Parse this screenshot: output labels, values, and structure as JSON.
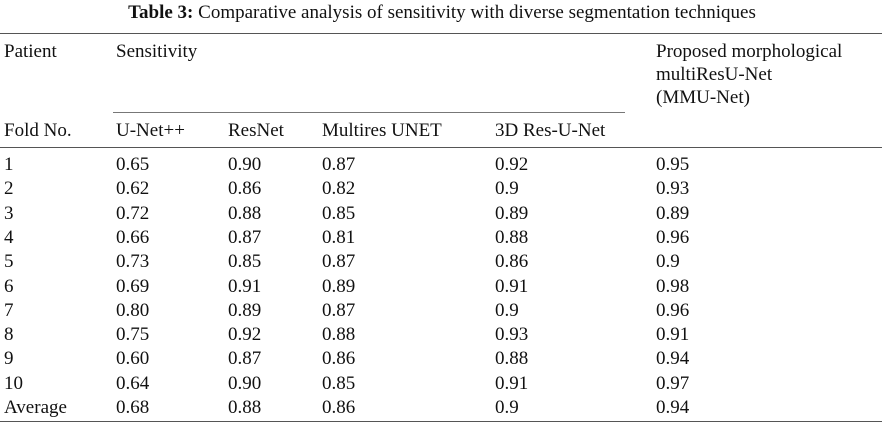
{
  "caption": {
    "label": "Table 3:",
    "text": "Comparative analysis of sensitivity with diverse segmentation techniques"
  },
  "header": {
    "patient": "Patient",
    "sensitivity": "Sensitivity",
    "proposed_line1": "Proposed morphological",
    "proposed_line2": "multiResU-Net",
    "proposed_line3": "(MMU-Net)",
    "fold": "Fold No.",
    "methods": [
      "U-Net++",
      "ResNet",
      "Multires UNET",
      "3D Res-U-Net"
    ]
  },
  "rows": [
    [
      "1",
      "0.65",
      "0.90",
      "0.87",
      "0.92",
      "0.95"
    ],
    [
      "2",
      "0.62",
      "0.86",
      "0.82",
      "0.9",
      "0.93"
    ],
    [
      "3",
      "0.72",
      "0.88",
      "0.85",
      "0.89",
      "0.89"
    ],
    [
      "4",
      "0.66",
      "0.87",
      "0.81",
      "0.88",
      "0.96"
    ],
    [
      "5",
      "0.73",
      "0.85",
      "0.87",
      "0.86",
      "0.9"
    ],
    [
      "6",
      "0.69",
      "0.91",
      "0.89",
      "0.91",
      "0.98"
    ],
    [
      "7",
      "0.80",
      "0.89",
      "0.87",
      "0.9",
      "0.96"
    ],
    [
      "8",
      "0.75",
      "0.92",
      "0.88",
      "0.93",
      "0.91"
    ],
    [
      "9",
      "0.60",
      "0.87",
      "0.86",
      "0.88",
      "0.94"
    ],
    [
      "10",
      "0.64",
      "0.90",
      "0.85",
      "0.91",
      "0.97"
    ],
    [
      "Average",
      "0.68",
      "0.88",
      "0.86",
      "0.9",
      "0.94"
    ]
  ]
}
